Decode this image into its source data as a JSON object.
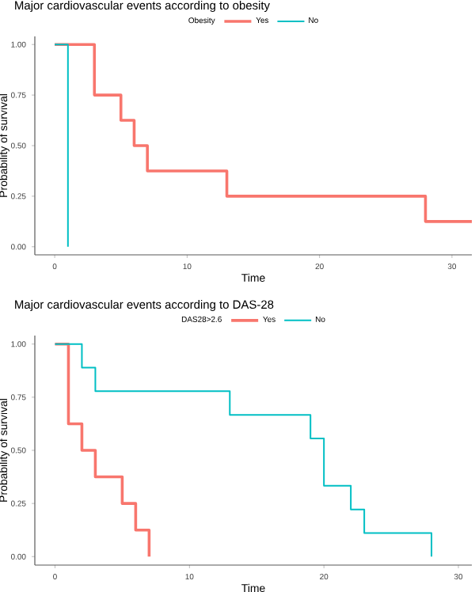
{
  "chart_data": [
    {
      "type": "step",
      "title": "Major cardiovascular events according to obesity",
      "xlabel": "Time",
      "ylabel": "Probability of survival",
      "legend_title": "Obesity",
      "legend": "top",
      "grid": false,
      "marker": "none",
      "xlim": [
        -1.5,
        31.5
      ],
      "ylim": [
        -0.04,
        1.04
      ],
      "xticks": [
        0,
        10,
        20,
        30
      ],
      "yticks": [
        {
          "value": 0,
          "label": "0.00"
        },
        {
          "value": 0.25,
          "label": "0.25"
        },
        {
          "value": 0.5,
          "label": "0.50"
        },
        {
          "value": 0.75,
          "label": "0.75"
        },
        {
          "value": 1,
          "label": "1.00"
        }
      ],
      "series": [
        {
          "name": "Yes",
          "color": "#f8766d",
          "x": [
            0,
            3,
            5,
            6,
            7,
            13,
            28,
            31.5
          ],
          "values": [
            1,
            0.75,
            0.625,
            0.5,
            0.375,
            0.25,
            0.125,
            0.125
          ]
        },
        {
          "name": "No",
          "color": "#00bfc4",
          "x": [
            0,
            1
          ],
          "values": [
            1,
            0
          ]
        }
      ]
    },
    {
      "type": "step",
      "title": "Major cardiovascular events according to DAS-28",
      "xlabel": "Time",
      "ylabel": "Probability of survival",
      "legend_title": "DAS28>2.6",
      "legend": "top",
      "grid": false,
      "marker": "none",
      "xlim": [
        -1.5,
        31
      ],
      "ylim": [
        -0.04,
        1.04
      ],
      "xticks": [
        0,
        10,
        20,
        30
      ],
      "yticks": [
        {
          "value": 0,
          "label": "0.00"
        },
        {
          "value": 0.25,
          "label": "0.25"
        },
        {
          "value": 0.5,
          "label": "0.50"
        },
        {
          "value": 0.75,
          "label": "0.75"
        },
        {
          "value": 1,
          "label": "1.00"
        }
      ],
      "series": [
        {
          "name": "Yes",
          "color": "#f8766d",
          "x": [
            0,
            1,
            2,
            3,
            5,
            6,
            7
          ],
          "values": [
            1,
            0.625,
            0.5,
            0.375,
            0.25,
            0.125,
            0
          ]
        },
        {
          "name": "No",
          "color": "#00bfc4",
          "x": [
            0,
            2,
            3,
            13,
            19,
            20,
            22,
            23,
            28
          ],
          "values": [
            1,
            0.889,
            0.778,
            0.667,
            0.556,
            0.333,
            0.222,
            0.111,
            0
          ]
        }
      ]
    }
  ]
}
